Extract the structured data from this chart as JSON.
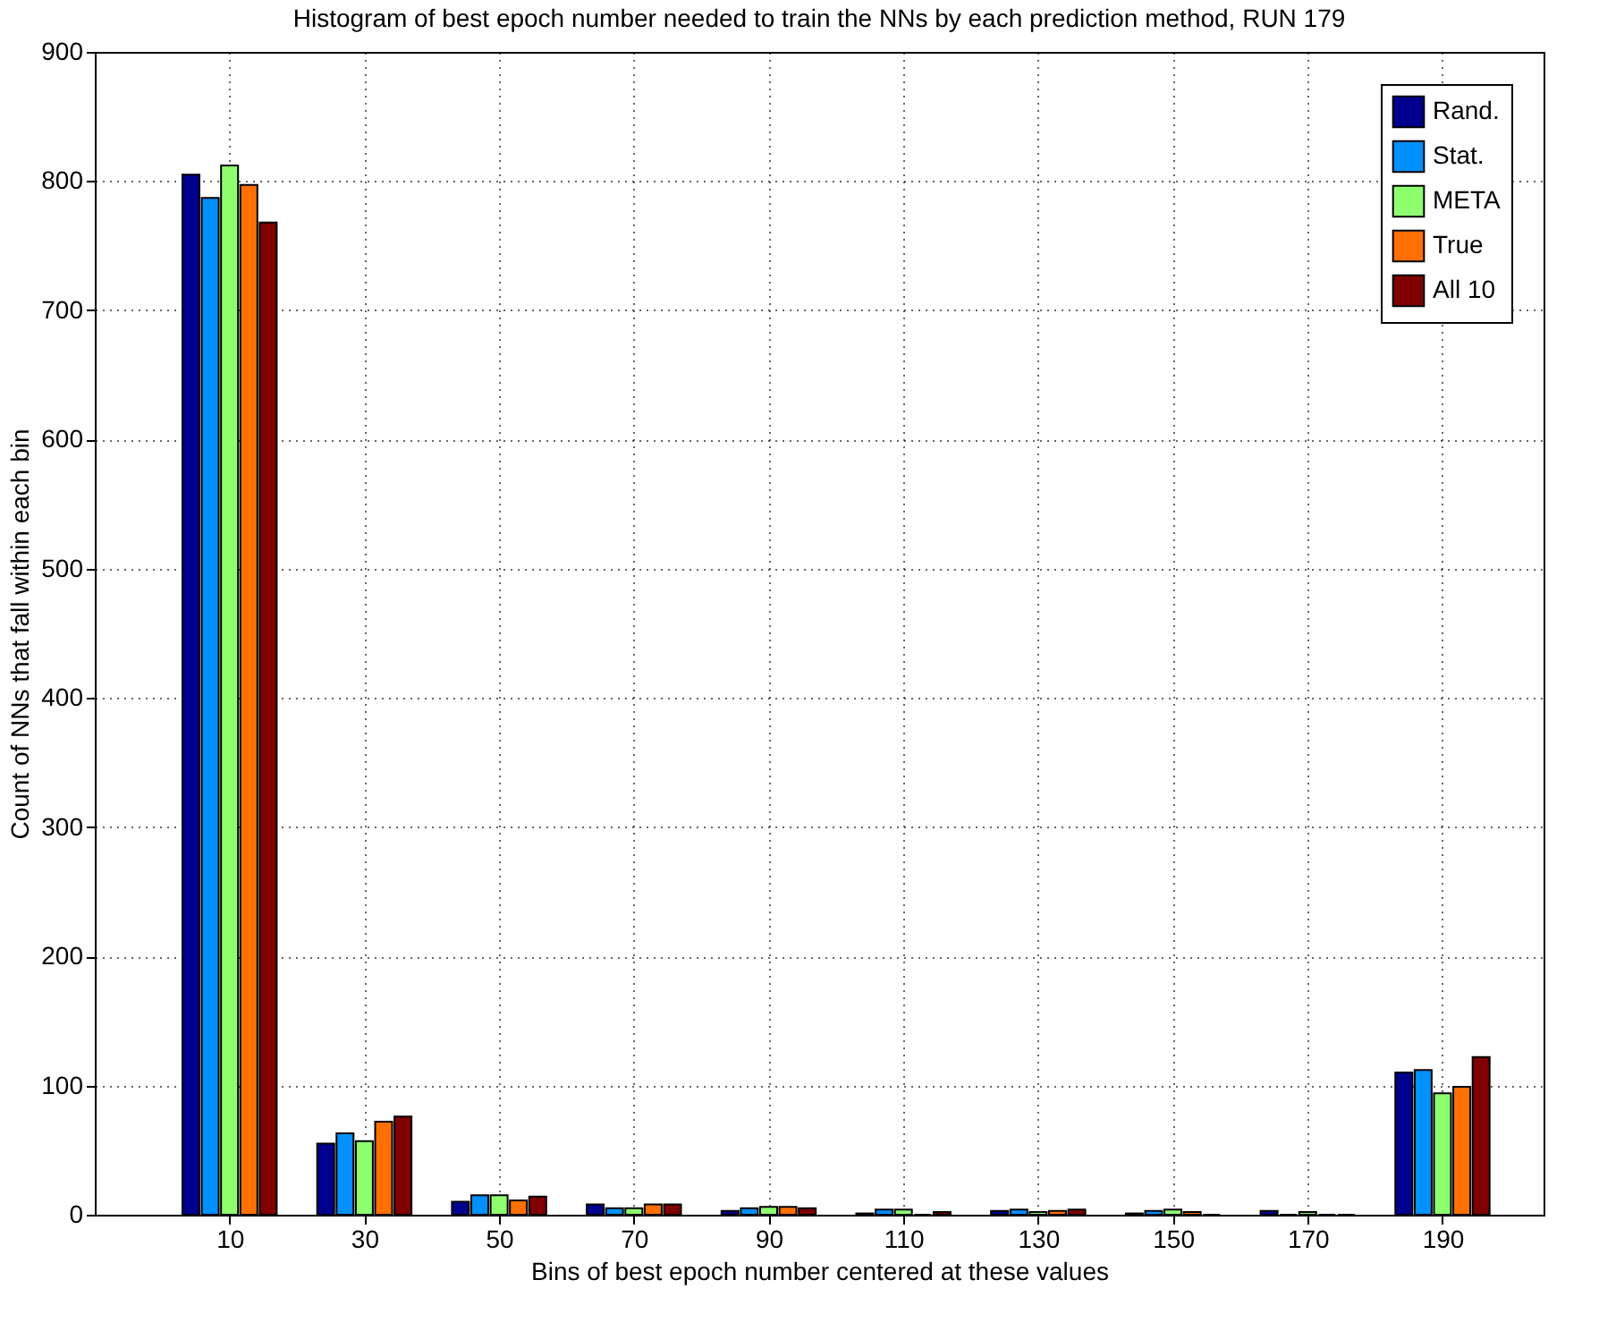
{
  "chart_data": {
    "type": "bar",
    "title": "Histogram of best epoch number needed to train the NNs by each prediction method, RUN 179",
    "xlabel": "Bins of best epoch number centered at these values",
    "ylabel": "Count of NNs that fall within each bin",
    "x": [
      10,
      30,
      50,
      70,
      90,
      110,
      130,
      150,
      170,
      190
    ],
    "series": [
      {
        "name": "Rand.",
        "color": "#00008f",
        "values": [
          805,
          55,
          10,
          8,
          3,
          1,
          3,
          1,
          3,
          110
        ]
      },
      {
        "name": "Stat.",
        "color": "#0090ff",
        "values": [
          787,
          63,
          15,
          5,
          5,
          4,
          4,
          3,
          0,
          112
        ]
      },
      {
        "name": "META",
        "color": "#8fff70",
        "values": [
          812,
          57,
          15,
          5,
          6,
          4,
          2,
          4,
          2,
          94
        ]
      },
      {
        "name": "True",
        "color": "#ff7000",
        "values": [
          797,
          72,
          11,
          8,
          6,
          0,
          3,
          2,
          0,
          99
        ]
      },
      {
        "name": "All 10",
        "color": "#800000",
        "values": [
          768,
          76,
          14,
          8,
          5,
          2,
          4,
          0,
          0,
          122
        ]
      }
    ],
    "xlim": [
      -10,
      205
    ],
    "xticks": [
      10,
      30,
      50,
      70,
      90,
      110,
      130,
      150,
      170,
      190
    ],
    "ylim": [
      0,
      900
    ],
    "yticks": [
      0,
      100,
      200,
      300,
      400,
      500,
      600,
      700,
      800,
      900
    ],
    "grid": true,
    "legend": "top right"
  }
}
